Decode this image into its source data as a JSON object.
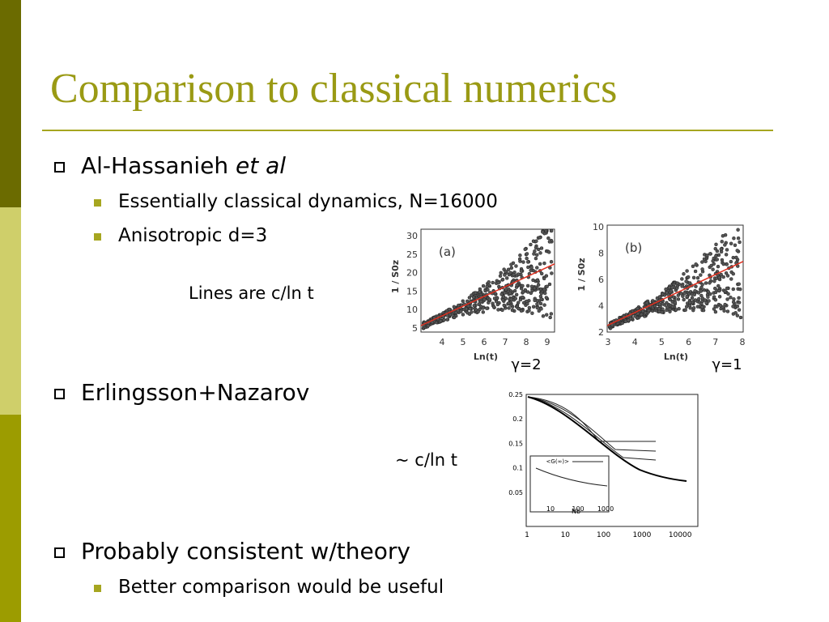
{
  "title": "Comparison to classical numerics",
  "bullets": [
    {
      "text": "Al-Hassanieh",
      "emphasis": "et al",
      "sub": [
        "Essentially classical dynamics, N=16000",
        "Anisotropic d=3"
      ]
    },
    {
      "text": "Erlingsson+Nazarov"
    },
    {
      "text": "Probably consistent w/theory",
      "sub": [
        "Better comparison would be useful"
      ]
    }
  ],
  "notes": {
    "lines": "Lines are c/ln t",
    "approx_symbol": "~",
    "approx": "c/ln t"
  },
  "figures": [
    {
      "panel": "(a)",
      "ylabel": "1 / S0z",
      "xlabel": "Ln(t)",
      "yticks": [
        "5",
        "10",
        "15",
        "20",
        "25",
        "30"
      ],
      "xticks": [
        "4",
        "5",
        "6",
        "7",
        "8",
        "9"
      ],
      "caption": "γ=2"
    },
    {
      "panel": "(b)",
      "ylabel": "1 / S0z",
      "xlabel": "Ln(t)",
      "yticks": [
        "2",
        "4",
        "6",
        "8",
        "10"
      ],
      "xticks": [
        "3",
        "4",
        "5",
        "6",
        "7",
        "8"
      ],
      "caption": "γ=1"
    },
    {
      "yticks": [
        "0.05",
        "0.1",
        "0.15",
        "0.2",
        "0.25"
      ],
      "xticks": [
        "1",
        "10",
        "100",
        "1000",
        "10000"
      ],
      "inset_legend": "<G(∞)>",
      "inset_xlabel": "Nb",
      "inset_xticks": [
        "10",
        "100",
        "1000"
      ]
    }
  ]
}
